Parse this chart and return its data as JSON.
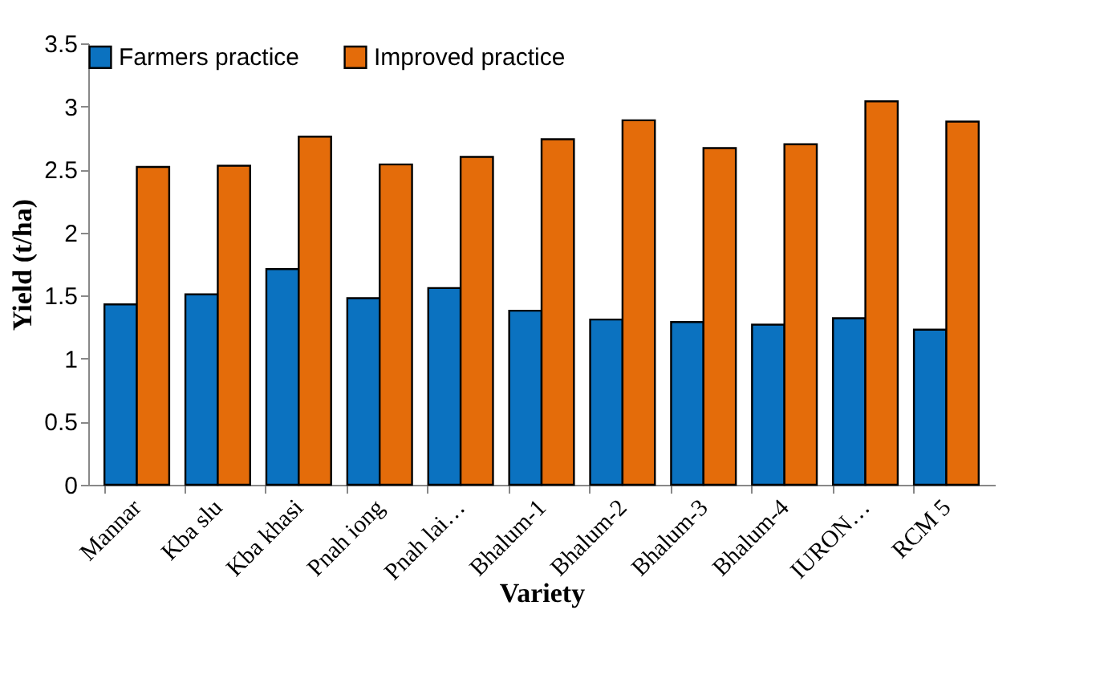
{
  "chart_data": {
    "type": "bar",
    "xlabel": "Variety",
    "ylabel": "Yield (t/ha)",
    "categories": [
      "Mannar",
      "Kba slu",
      "Kba khasi",
      "Pnah iong",
      "Pnah lai…",
      "Bhalum-1",
      "Bhalum-2",
      "Bhalum-3",
      "Bhalum-4",
      "IURON…",
      "RCM 5"
    ],
    "series": [
      {
        "name": "Farmers practice",
        "color": "#0b72c0",
        "values": [
          1.43,
          1.51,
          1.71,
          1.48,
          1.56,
          1.38,
          1.31,
          1.29,
          1.27,
          1.32,
          1.23
        ]
      },
      {
        "name": "Improved  practice",
        "color": "#e46c0a",
        "values": [
          2.52,
          2.53,
          2.76,
          2.54,
          2.6,
          2.74,
          2.89,
          2.67,
          2.7,
          3.04,
          2.88
        ]
      }
    ],
    "ylim": [
      0,
      3.5
    ],
    "yticks": [
      0,
      0.5,
      1,
      1.5,
      2,
      2.5,
      3,
      3.5
    ],
    "grid": false,
    "legend": "top"
  }
}
